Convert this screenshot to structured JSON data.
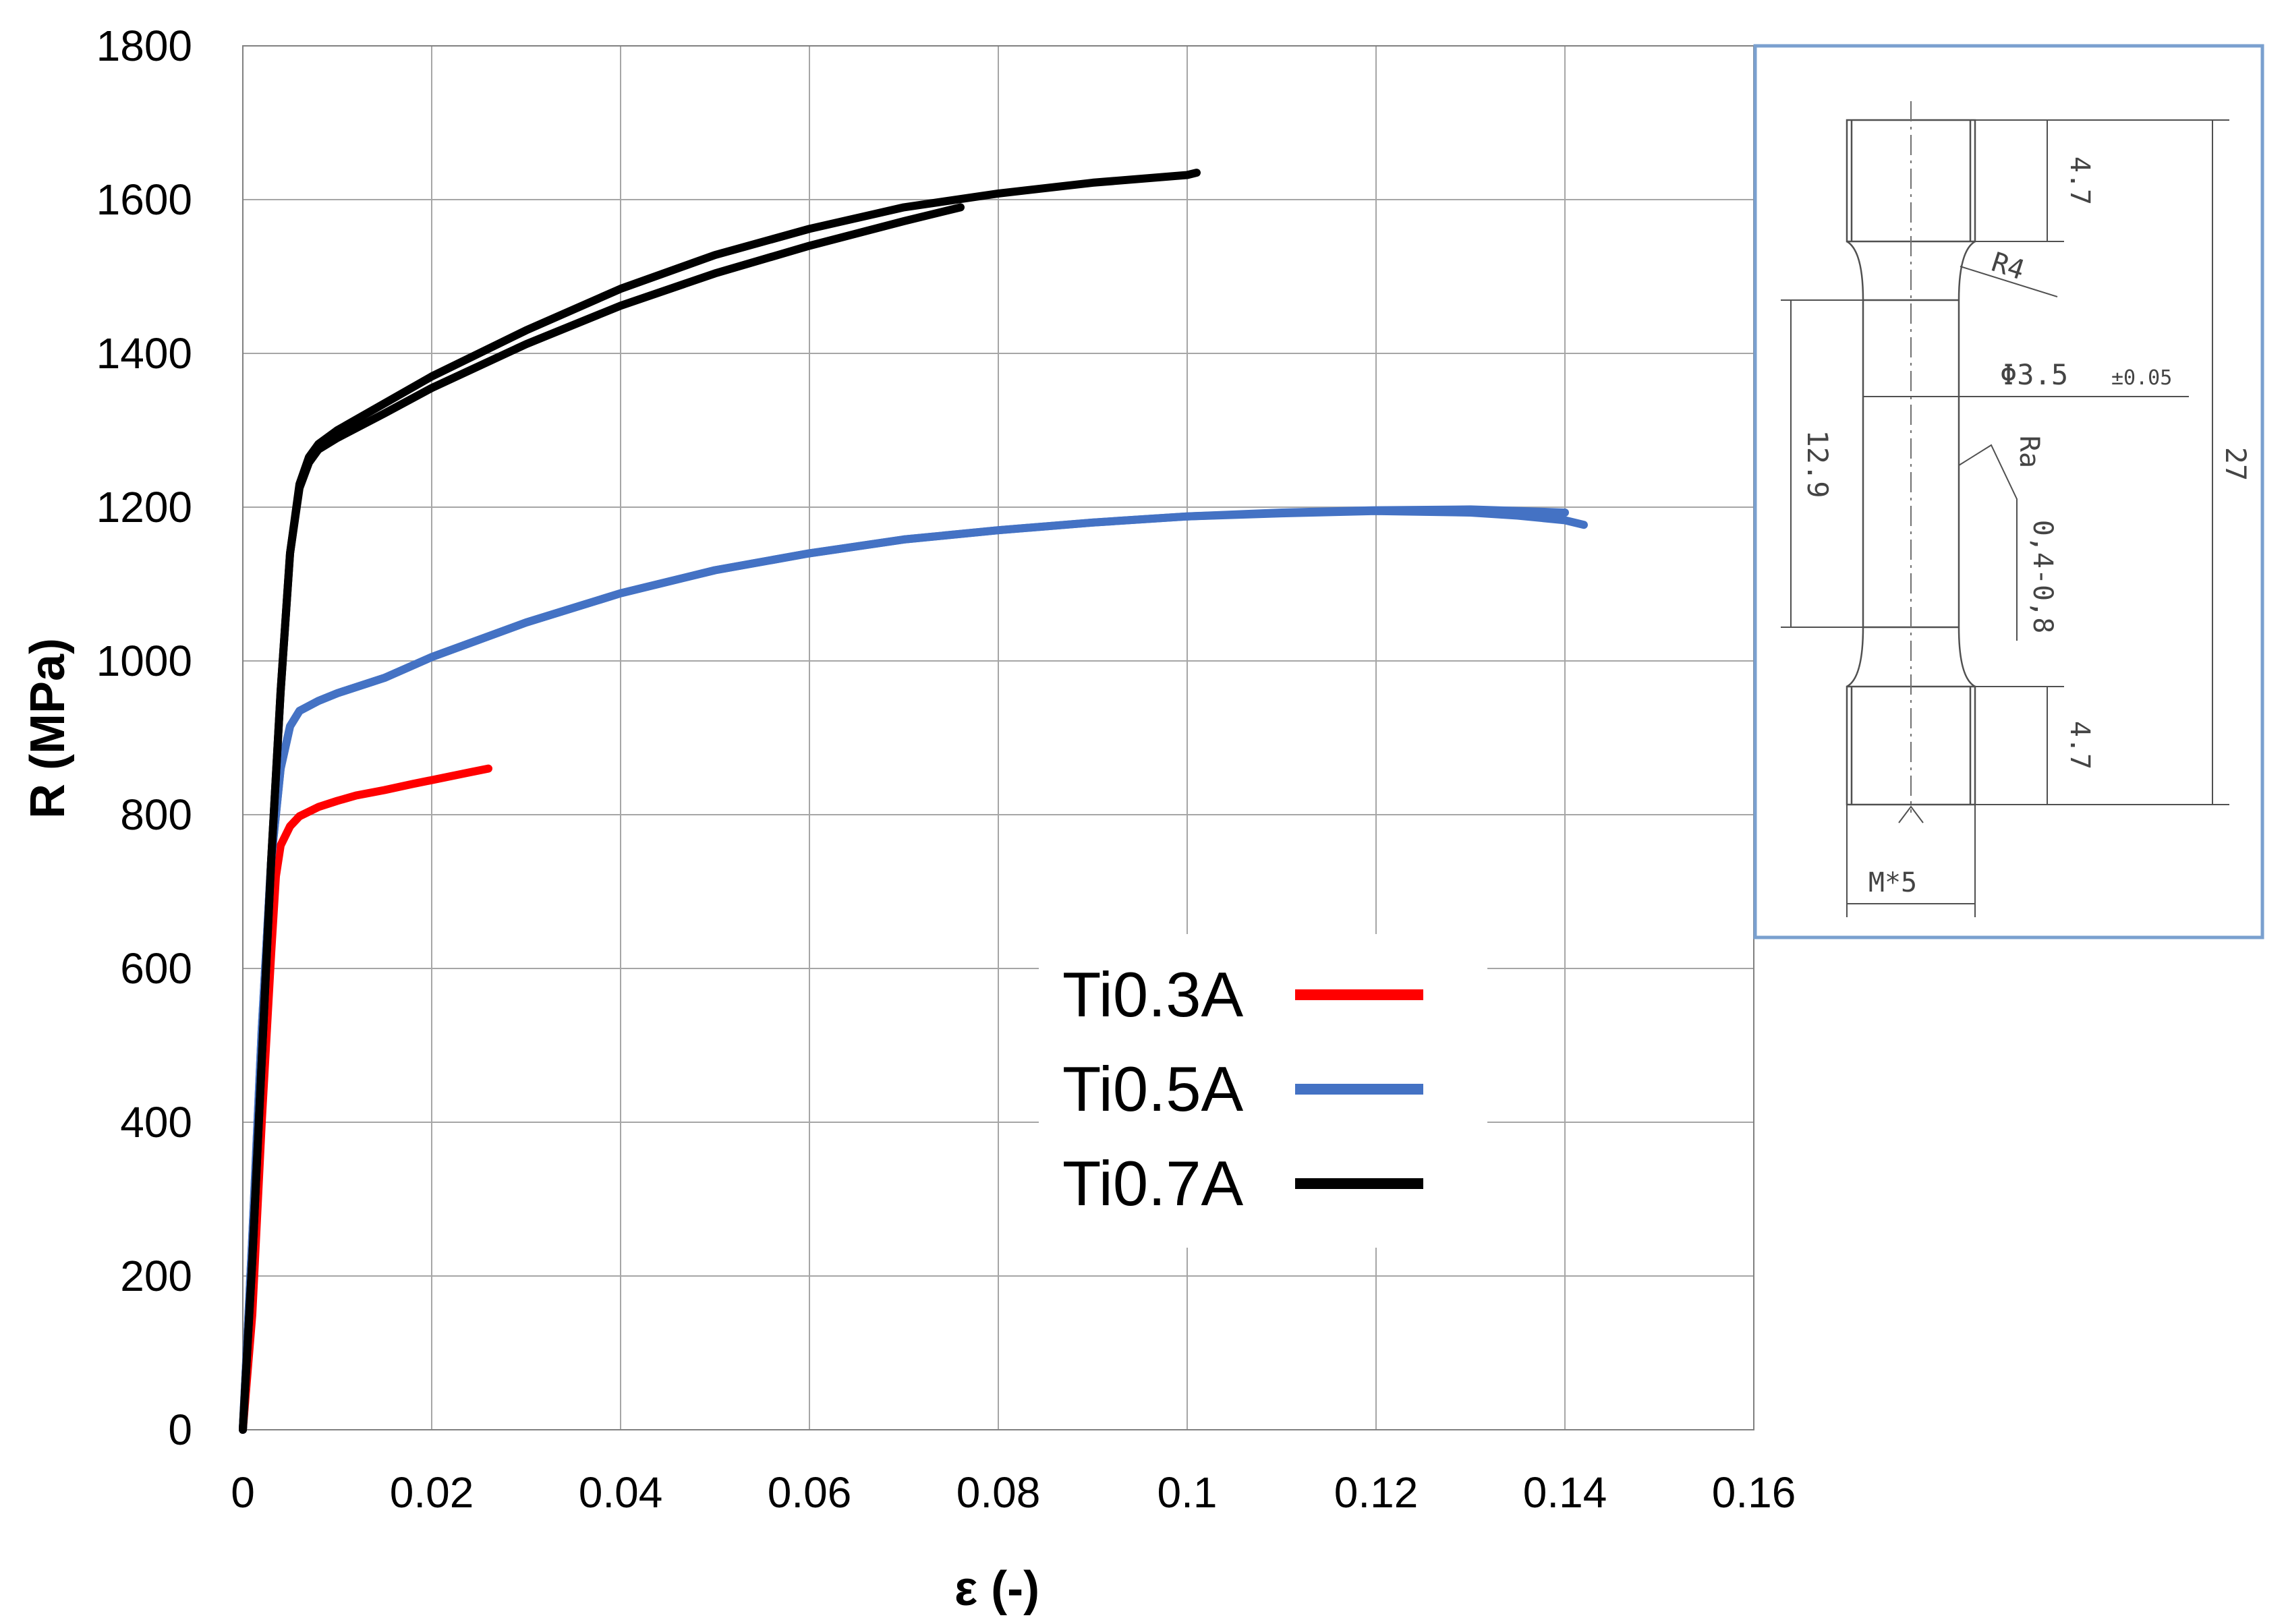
{
  "chart_data": {
    "type": "line",
    "xlabel": "ε (-)",
    "ylabel": "R (MPa)",
    "xlim": [
      0,
      0.16
    ],
    "ylim": [
      0,
      1800
    ],
    "x_ticks": [
      "0",
      "0.02",
      "0.04",
      "0.06",
      "0.08",
      "0.1",
      "0.12",
      "0.14",
      "0.16"
    ],
    "y_ticks": [
      "0",
      "200",
      "400",
      "600",
      "800",
      "1000",
      "1200",
      "1400",
      "1600",
      "1800"
    ],
    "grid": true,
    "legend_position": "center-right",
    "series": [
      {
        "name": "Ti0.3A",
        "color": "#ff0000",
        "curves": [
          [
            [
              0,
              0
            ],
            [
              0.001,
              150
            ],
            [
              0.002,
              400
            ],
            [
              0.003,
              620
            ],
            [
              0.0035,
              720
            ],
            [
              0.004,
              760
            ],
            [
              0.005,
              785
            ],
            [
              0.006,
              798
            ],
            [
              0.008,
              810
            ],
            [
              0.01,
              818
            ],
            [
              0.012,
              825
            ],
            [
              0.015,
              832
            ],
            [
              0.018,
              840
            ],
            [
              0.02,
              845
            ],
            [
              0.022,
              850
            ],
            [
              0.024,
              855
            ],
            [
              0.026,
              860
            ]
          ]
        ]
      },
      {
        "name": "Ti0.5A",
        "color": "#4472c4",
        "curves": [
          [
            [
              0,
              0
            ],
            [
              0.001,
              250
            ],
            [
              0.002,
              520
            ],
            [
              0.003,
              740
            ],
            [
              0.004,
              860
            ],
            [
              0.005,
              915
            ],
            [
              0.006,
              935
            ],
            [
              0.008,
              948
            ],
            [
              0.01,
              958
            ],
            [
              0.015,
              978
            ],
            [
              0.02,
              1005
            ],
            [
              0.03,
              1050
            ],
            [
              0.04,
              1088
            ],
            [
              0.05,
              1118
            ],
            [
              0.06,
              1140
            ],
            [
              0.07,
              1158
            ],
            [
              0.08,
              1170
            ],
            [
              0.09,
              1180
            ],
            [
              0.1,
              1188
            ],
            [
              0.11,
              1193
            ],
            [
              0.12,
              1196
            ],
            [
              0.13,
              1197
            ],
            [
              0.14,
              1193
            ]
          ],
          [
            [
              0,
              0
            ],
            [
              0.001,
              250
            ],
            [
              0.002,
              520
            ],
            [
              0.003,
              740
            ],
            [
              0.004,
              860
            ],
            [
              0.005,
              915
            ],
            [
              0.006,
              935
            ],
            [
              0.008,
              948
            ],
            [
              0.01,
              958
            ],
            [
              0.015,
              978
            ],
            [
              0.02,
              1005
            ],
            [
              0.03,
              1050
            ],
            [
              0.04,
              1088
            ],
            [
              0.05,
              1118
            ],
            [
              0.06,
              1140
            ],
            [
              0.07,
              1158
            ],
            [
              0.08,
              1170
            ],
            [
              0.09,
              1180
            ],
            [
              0.1,
              1188
            ],
            [
              0.11,
              1192
            ],
            [
              0.12,
              1195
            ],
            [
              0.13,
              1193
            ],
            [
              0.135,
              1189
            ],
            [
              0.14,
              1183
            ],
            [
              0.142,
              1177
            ]
          ]
        ]
      },
      {
        "name": "Ti0.7A",
        "color": "#000000",
        "curves": [
          [
            [
              0,
              0
            ],
            [
              0.001,
              220
            ],
            [
              0.002,
              480
            ],
            [
              0.003,
              740
            ],
            [
              0.004,
              960
            ],
            [
              0.005,
              1140
            ],
            [
              0.006,
              1230
            ],
            [
              0.007,
              1265
            ],
            [
              0.008,
              1282
            ],
            [
              0.01,
              1300
            ],
            [
              0.015,
              1335
            ],
            [
              0.02,
              1370
            ],
            [
              0.03,
              1430
            ],
            [
              0.04,
              1484
            ],
            [
              0.05,
              1528
            ],
            [
              0.06,
              1562
            ],
            [
              0.07,
              1590
            ],
            [
              0.08,
              1608
            ],
            [
              0.09,
              1622
            ],
            [
              0.1,
              1632
            ],
            [
              0.101,
              1635
            ]
          ],
          [
            [
              0,
              0
            ],
            [
              0.001,
              220
            ],
            [
              0.002,
              480
            ],
            [
              0.003,
              740
            ],
            [
              0.004,
              960
            ],
            [
              0.005,
              1140
            ],
            [
              0.006,
              1225
            ],
            [
              0.007,
              1258
            ],
            [
              0.008,
              1275
            ],
            [
              0.01,
              1290
            ],
            [
              0.015,
              1322
            ],
            [
              0.02,
              1355
            ],
            [
              0.03,
              1412
            ],
            [
              0.04,
              1462
            ],
            [
              0.05,
              1504
            ],
            [
              0.06,
              1540
            ],
            [
              0.07,
              1572
            ],
            [
              0.076,
              1590
            ]
          ]
        ]
      }
    ]
  },
  "inset": {
    "dim_top_grip": "4.7",
    "dim_radius": "R4",
    "dim_diameter": "Φ3.5",
    "dim_tolerance": "±0.05",
    "dim_gauge_length": "12.9",
    "dim_roughness_symbol": "Ra",
    "dim_roughness_value": "0,4-0,8",
    "dim_total_length": "27",
    "dim_bottom_grip": "4.7",
    "dim_thread": "M*5"
  }
}
